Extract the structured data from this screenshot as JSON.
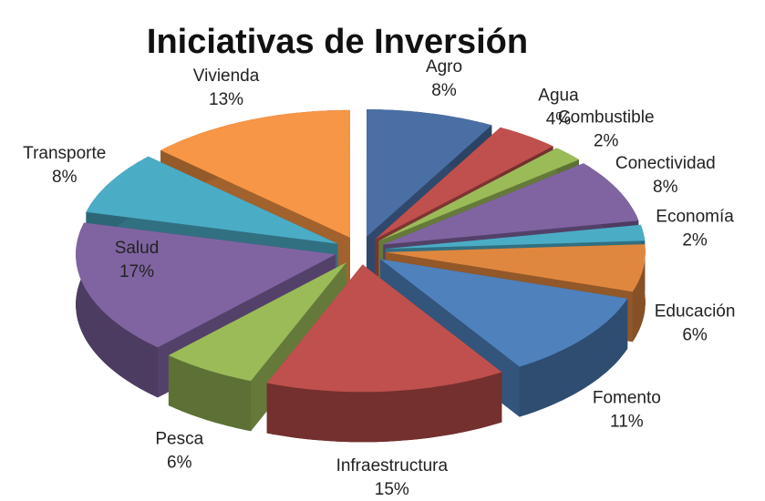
{
  "chart_data": {
    "type": "pie",
    "title": "Iniciativas de Inversión",
    "categories": [
      "Agro",
      "Agua",
      "Combustible",
      "Conectividad",
      "Economía",
      "Educación",
      "Fomento",
      "Infraestructura",
      "Pesca",
      "Salud",
      "Transporte",
      "Vivienda"
    ],
    "values": [
      8,
      4,
      2,
      8,
      2,
      6,
      11,
      15,
      6,
      17,
      8,
      13
    ],
    "value_labels": [
      "8%",
      "4%",
      "2%",
      "8%",
      "2%",
      "6%",
      "11%",
      "15%",
      "6%",
      "17%",
      "8%",
      "13%"
    ],
    "colors": [
      "#4a6fa5",
      "#c0504d",
      "#9bbb59",
      "#8064a2",
      "#4bacc6",
      "#e0873f",
      "#4f81bd",
      "#c0504d",
      "#9bbb59",
      "#8064a2",
      "#4bacc6",
      "#f79646"
    ]
  }
}
